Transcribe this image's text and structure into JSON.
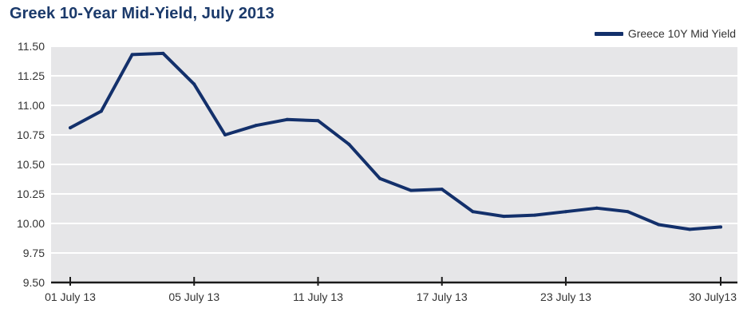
{
  "chart_data": {
    "type": "line",
    "title": "Greek 10-Year Mid-Yield, July 2013",
    "xlabel": "",
    "ylabel": "",
    "ylim": [
      9.5,
      11.5
    ],
    "yticks": [
      "11.50",
      "11.25",
      "11.00",
      "10.75",
      "10.50",
      "10.25",
      "10.00",
      "9.75",
      "9.50"
    ],
    "xticks": [
      "01 July 13",
      "05 July 13",
      "11 July 13",
      "17 July 13",
      "23 July 13",
      "30 July13"
    ],
    "grid": true,
    "legend_position": "top-right",
    "colors": {
      "series": "#13306b",
      "plot_bg": "#e6e6e8",
      "grid": "#ffffff",
      "title": "#1b3a6b"
    },
    "series": [
      {
        "name": "Greece 10Y Mid Yield",
        "x": [
          "01 July 13",
          "02 July 13",
          "03 July 13",
          "04 July 13",
          "05 July 13",
          "08 July 13",
          "09 July 13",
          "10 July 13",
          "11 July 13",
          "12 July 13",
          "15 July 13",
          "16 July 13",
          "17 July 13",
          "18 July 13",
          "19 July 13",
          "22 July 13",
          "23 July 13",
          "24 July 13",
          "25 July 13",
          "26 July 13",
          "29 July 13",
          "30 July 13"
        ],
        "values": [
          10.81,
          10.95,
          11.43,
          11.44,
          11.18,
          10.75,
          10.83,
          10.88,
          10.87,
          10.67,
          10.38,
          10.28,
          10.29,
          10.1,
          10.06,
          10.07,
          10.1,
          10.13,
          10.1,
          9.99,
          9.95,
          9.97
        ]
      }
    ]
  }
}
